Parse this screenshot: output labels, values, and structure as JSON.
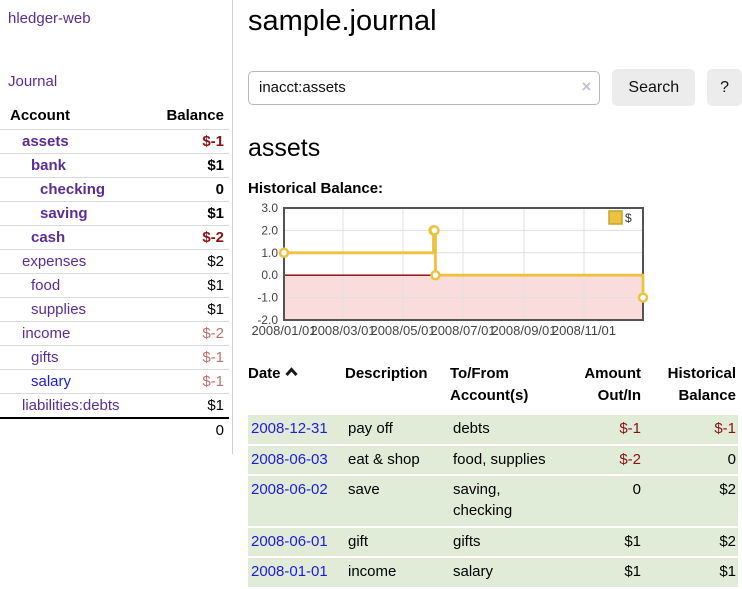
{
  "sidebar": {
    "brand": "hledger-web",
    "nav": {
      "journal": "Journal"
    },
    "accounts_table": {
      "col_account": "Account",
      "col_balance": "Balance",
      "rows": [
        {
          "name": "assets",
          "indent": 1,
          "bold": true,
          "link": "purple",
          "balance": "$-1",
          "balance_style": "neg-bold"
        },
        {
          "name": "bank",
          "indent": 2,
          "bold": true,
          "link": "purple",
          "balance": "$1",
          "balance_style": "bold"
        },
        {
          "name": "checking",
          "indent": 3,
          "bold": true,
          "link": "purple",
          "balance": "0",
          "balance_style": "bold"
        },
        {
          "name": "saving",
          "indent": 3,
          "bold": true,
          "link": "purple",
          "balance": "$1",
          "balance_style": "bold"
        },
        {
          "name": "cash",
          "indent": 2,
          "bold": true,
          "link": "purple",
          "balance": "$-2",
          "balance_style": "neg-bold"
        },
        {
          "name": "expenses",
          "indent": 1,
          "bold": false,
          "link": "purple",
          "balance": "$2",
          "balance_style": "plain"
        },
        {
          "name": "food",
          "indent": 2,
          "bold": false,
          "link": "purple",
          "balance": "$1",
          "balance_style": "plain"
        },
        {
          "name": "supplies",
          "indent": 2,
          "bold": false,
          "link": "purple",
          "balance": "$1",
          "balance_style": "plain"
        },
        {
          "name": "income",
          "indent": 1,
          "bold": false,
          "link": "purple",
          "balance": "$-2",
          "balance_style": "neg-faded"
        },
        {
          "name": "gifts",
          "indent": 2,
          "bold": false,
          "link": "purple",
          "balance": "$-1",
          "balance_style": "neg-faded"
        },
        {
          "name": "salary",
          "indent": 2,
          "bold": false,
          "link": "blue",
          "balance": "$-1",
          "balance_style": "neg-faded"
        },
        {
          "name": "liabilities:debts",
          "indent": 1,
          "bold": false,
          "link": "purple",
          "balance": "$1",
          "balance_style": "plain"
        }
      ],
      "total": "0"
    }
  },
  "header": {
    "title": "sample.journal"
  },
  "search": {
    "query": "inacct:assets",
    "clear_icon": "×",
    "button": "Search",
    "help_button": "?"
  },
  "account_page": {
    "heading": "assets",
    "chart_label": "Historical Balance:"
  },
  "chart_data": {
    "type": "line",
    "step": true,
    "title": "Historical Balance",
    "x_range": [
      "2008-01-01",
      "2008-12-31"
    ],
    "ylim": [
      -2,
      3
    ],
    "y_ticks": [
      {
        "v": 3,
        "label": "3.0"
      },
      {
        "v": 2,
        "label": "2.0"
      },
      {
        "v": 1,
        "label": "1.0"
      },
      {
        "v": 0,
        "label": "0.0"
      },
      {
        "v": -1,
        "label": "-1.0"
      },
      {
        "v": -2,
        "label": "-2.0"
      }
    ],
    "x_ticks": [
      {
        "x": "2008-01-01",
        "label": "2008/01/01"
      },
      {
        "x": "2008-03-01",
        "label": "2008/03/01"
      },
      {
        "x": "2008-05-01",
        "label": "2008/05/01"
      },
      {
        "x": "2008-07-01",
        "label": "2008/07/01"
      },
      {
        "x": "2008-09-01",
        "label": "2008/09/01"
      },
      {
        "x": "2008-11-01",
        "label": "2008/11/01"
      }
    ],
    "series": [
      {
        "name": "$",
        "color": "#edc240",
        "points": [
          {
            "x": "2008-01-01",
            "y": 1
          },
          {
            "x": "2008-06-01",
            "y": 2
          },
          {
            "x": "2008-06-02",
            "y": 2
          },
          {
            "x": "2008-06-03",
            "y": 0
          },
          {
            "x": "2008-12-31",
            "y": -1
          }
        ]
      }
    ],
    "legend": {
      "label": "$",
      "position": "top-right"
    },
    "grid": true,
    "negative_region_fill": "#fbdcdc",
    "zero_line_color": "#8b0000",
    "border_color": "#545454"
  },
  "register": {
    "columns": {
      "date": "Date",
      "description": "Description",
      "accounts": "To/From Account(s)",
      "amount": "Amount Out/In",
      "balance": "Historical Balance"
    },
    "sort": "date-ascending",
    "rows": [
      {
        "date": "2008-12-31",
        "description": "pay off",
        "accounts": "debts",
        "amount": "$-1",
        "amount_negative": true,
        "balance": "$-1",
        "balance_negative": true
      },
      {
        "date": "2008-06-03",
        "description": "eat & shop",
        "accounts": "food, supplies",
        "amount": "$-2",
        "amount_negative": true,
        "balance": "0",
        "balance_negative": false
      },
      {
        "date": "2008-06-02",
        "description": "save",
        "accounts": "saving, checking",
        "amount": "0",
        "amount_negative": false,
        "balance": "$2",
        "balance_negative": false
      },
      {
        "date": "2008-06-01",
        "description": "gift",
        "accounts": "gifts",
        "amount": "$1",
        "amount_negative": false,
        "balance": "$2",
        "balance_negative": false
      },
      {
        "date": "2008-01-01",
        "description": "income",
        "accounts": "salary",
        "amount": "$1",
        "amount_negative": false,
        "balance": "$1",
        "balance_negative": false
      }
    ]
  },
  "colors": {
    "link_purple": "#5b2d96",
    "link_blue": "#1c1ce0",
    "negative_dark_red": "#8b1212",
    "negative_faded_red": "#c2706e",
    "row_green": "#e0ecd8",
    "series_yellow": "#edc240",
    "chart_negative_pink": "#fbdcdc",
    "chart_zero_line": "#8b0000"
  }
}
